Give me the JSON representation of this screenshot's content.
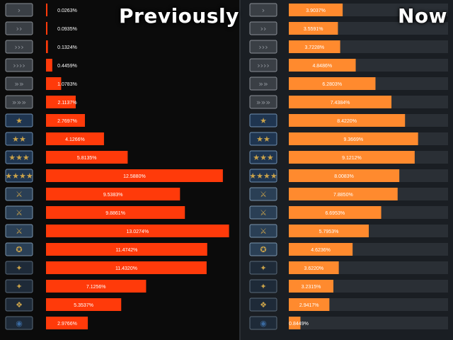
{
  "headings": {
    "left": "Previously",
    "right": "Now"
  },
  "colors": {
    "previous_bar": "#ff3a0a",
    "now_bar": "#ff8a2e",
    "left_background": "#0b0b0b",
    "right_background": "#1a1e23",
    "right_track": "#2a2f35",
    "badge_silver": "#8a8f96",
    "badge_gold": "#c9a24a",
    "badge_blue": "#3a6aa0"
  },
  "chart_data": [
    {
      "type": "bar",
      "orientation": "horizontal",
      "title": "Previously",
      "unit": "%",
      "categories": [
        "Silver I",
        "Silver II",
        "Silver III",
        "Silver IV",
        "Silver Elite",
        "Silver Elite Master",
        "Gold Nova I",
        "Gold Nova II",
        "Gold Nova III",
        "Gold Nova Master",
        "Master Guardian I",
        "Master Guardian II",
        "Master Guardian Elite",
        "Distinguished Master Guardian",
        "Legendary Eagle",
        "Legendary Eagle Master",
        "Supreme Master First Class",
        "The Global Elite"
      ],
      "values": [
        0.0263,
        0.0935,
        0.1324,
        0.4459,
        1.0783,
        2.1137,
        2.7697,
        4.1266,
        5.8135,
        12.588,
        9.5383,
        9.8861,
        13.0274,
        11.4742,
        11.432,
        7.1256,
        5.3537,
        2.9766
      ],
      "labels": [
        "0.0263%",
        "0.0935%",
        "0.1324%",
        "0.4459%",
        "1.0783%",
        "2.1137%",
        "2.7697%",
        "4.1266%",
        "5.8135%",
        "12.5880%",
        "9.5383%",
        "9.8861%",
        "13.0274%",
        "11.4742%",
        "11.4320%",
        "7.1256%",
        "5.3537%",
        "2.9766%"
      ],
      "xlim": [
        0,
        13.2
      ]
    },
    {
      "type": "bar",
      "orientation": "horizontal",
      "title": "Now",
      "unit": "%",
      "categories": [
        "Silver I",
        "Silver II",
        "Silver III",
        "Silver IV",
        "Silver Elite",
        "Silver Elite Master",
        "Gold Nova I",
        "Gold Nova II",
        "Gold Nova III",
        "Gold Nova Master",
        "Master Guardian I",
        "Master Guardian II",
        "Master Guardian Elite",
        "Distinguished Master Guardian",
        "Legendary Eagle",
        "Legendary Eagle Master",
        "Supreme Master First Class",
        "The Global Elite"
      ],
      "values": [
        3.9037,
        3.5591,
        3.7228,
        4.8486,
        6.2803,
        7.4384,
        8.422,
        9.3669,
        9.1212,
        8.0083,
        7.885,
        6.6953,
        5.7953,
        4.6236,
        3.622,
        3.2315,
        2.9417,
        0.8449
      ],
      "labels": [
        "3.9037%",
        "3.5591%",
        "3.7228%",
        "4.8486%",
        "6.2803%",
        "7.4384%",
        "8.4220%",
        "9.3669%",
        "9.1212%",
        "8.0083%",
        "7.8850%",
        "6.6953%",
        "5.7953%",
        "4.6236%",
        "3.6220%",
        "3.2315%",
        "2.9417%",
        "0.8449%"
      ],
      "xlim": [
        0,
        10.0
      ]
    }
  ],
  "rank_icons": [
    "silver-1-icon",
    "silver-2-icon",
    "silver-3-icon",
    "silver-4-icon",
    "silver-elite-icon",
    "silver-elite-master-icon",
    "gold-nova-1-icon",
    "gold-nova-2-icon",
    "gold-nova-3-icon",
    "gold-nova-master-icon",
    "master-guardian-1-icon",
    "master-guardian-2-icon",
    "master-guardian-elite-icon",
    "distinguished-master-guardian-icon",
    "legendary-eagle-icon",
    "legendary-eagle-master-icon",
    "supreme-master-first-class-icon",
    "global-elite-icon"
  ]
}
